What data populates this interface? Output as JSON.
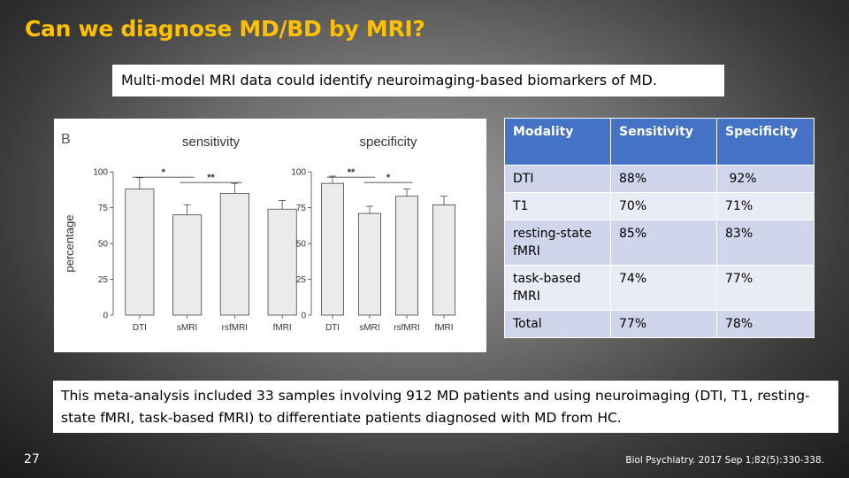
{
  "slide": {
    "title": "Can we diagnose MD/BD by MRI?",
    "subtitle": "Multi-model MRI data could identify neuroimaging-based  biomarkers of MD.",
    "note": "This meta-analysis included 33 samples involving 912 MD patients and using neuroimaging (DTI, T1, resting-state fMRI, task-based fMRI) to differentiate  patients diagnosed with MD from HC.",
    "slide_number": "27",
    "citation": "Biol Psychiatry. 2017 Sep 1;82(5):330-338."
  },
  "table": {
    "headers": [
      "Modality",
      "Sensitivity",
      "Specificity"
    ],
    "rows": [
      [
        "DTI",
        "88%",
        " 92%"
      ],
      [
        "T1",
        "70%",
        "71%"
      ],
      [
        "resting-state fMRI",
        "85%",
        "83%"
      ],
      [
        "task-based fMRI",
        "74%",
        "77%"
      ],
      [
        "Total",
        "77%",
        "78%"
      ]
    ]
  },
  "chart_data": [
    {
      "type": "bar",
      "panel_label": "B",
      "title": "sensitivity",
      "ylabel": "percentage",
      "xlabel": "",
      "categories": [
        "DTI",
        "sMRI",
        "rsfMRI",
        "fMRI"
      ],
      "values": [
        88,
        70,
        85,
        74
      ],
      "error_upper": [
        96,
        77,
        92,
        80
      ],
      "ylim": [
        0,
        110
      ],
      "yticks": [
        0,
        25,
        50,
        75,
        100
      ],
      "significance": [
        {
          "from": 0,
          "to": 1,
          "label": "*"
        },
        {
          "from": 1,
          "to": 2,
          "label": "**"
        }
      ],
      "bar_color": "#ebebeb",
      "grid": false
    },
    {
      "type": "bar",
      "title": "specificity",
      "ylabel": "",
      "xlabel": "",
      "categories": [
        "DTI",
        "sMRI",
        "rsfMRI",
        "fMRI"
      ],
      "values": [
        92,
        71,
        83,
        77
      ],
      "error_upper": [
        97,
        76,
        88,
        83
      ],
      "ylim": [
        0,
        110
      ],
      "yticks": [
        0,
        25,
        50,
        75,
        100
      ],
      "significance": [
        {
          "from": 0,
          "to": 1,
          "label": "**"
        },
        {
          "from": 1,
          "to": 2,
          "label": "*"
        }
      ],
      "bar_color": "#ebebeb",
      "grid": false
    }
  ]
}
